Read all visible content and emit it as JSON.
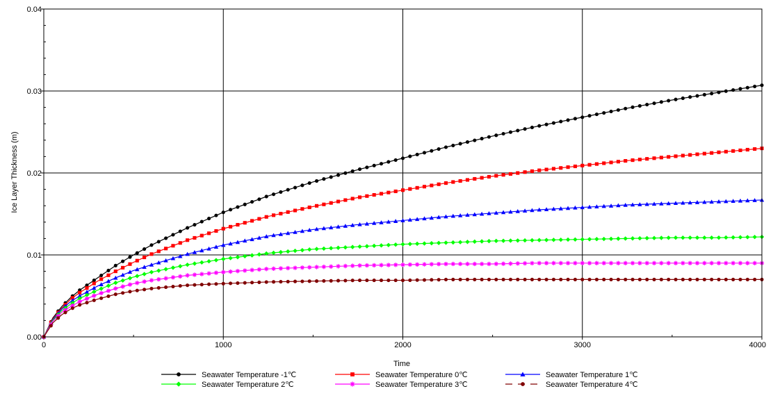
{
  "chart_data": {
    "type": "line",
    "xlabel": "Time",
    "ylabel": "Ice Layer Thickness (m)",
    "xlim": [
      0,
      4000
    ],
    "ylim": [
      0,
      0.04
    ],
    "x_ticks": [
      "0",
      "1000",
      "2000",
      "3000",
      "4000"
    ],
    "y_ticks": [
      "0.00",
      "0.01",
      "0.02",
      "0.03",
      "0.04"
    ],
    "grid": true,
    "legend_position": "bottom",
    "x": [
      0,
      50,
      100,
      150,
      200,
      300,
      400,
      500,
      600,
      800,
      1000,
      1250,
      1500,
      1750,
      2000,
      2250,
      2500,
      2750,
      3000,
      3250,
      3500,
      3750,
      4000
    ],
    "series": [
      {
        "name": "Seawater Temperature -1℃",
        "color": "#000000",
        "marker": "circle",
        "dash": false,
        "values": [
          0,
          0.0023,
          0.0037,
          0.0048,
          0.0057,
          0.0072,
          0.0087,
          0.01,
          0.0112,
          0.0133,
          0.0152,
          0.0172,
          0.0189,
          0.0204,
          0.0218,
          0.0232,
          0.0245,
          0.0257,
          0.0268,
          0.0279,
          0.0289,
          0.0298,
          0.0307
        ]
      },
      {
        "name": "Seawater Temperature 0℃",
        "color": "#ff0000",
        "marker": "square",
        "dash": false,
        "values": [
          0,
          0.0022,
          0.0035,
          0.0046,
          0.0054,
          0.0068,
          0.008,
          0.0091,
          0.0101,
          0.0118,
          0.0132,
          0.0147,
          0.0159,
          0.017,
          0.0179,
          0.0188,
          0.0196,
          0.0203,
          0.0209,
          0.0215,
          0.022,
          0.0225,
          0.023
        ]
      },
      {
        "name": "Seawater Temperature 1℃",
        "color": "#0000ff",
        "marker": "triangle",
        "dash": false,
        "values": [
          0,
          0.0021,
          0.0034,
          0.0043,
          0.005,
          0.0062,
          0.0072,
          0.0081,
          0.0088,
          0.0101,
          0.0112,
          0.0123,
          0.0131,
          0.0137,
          0.0142,
          0.0147,
          0.0151,
          0.0155,
          0.0158,
          0.0161,
          0.0163,
          0.0165,
          0.0167
        ]
      },
      {
        "name": "Seawater Temperature 2℃",
        "color": "#00ff00",
        "marker": "diamond",
        "dash": false,
        "values": [
          0,
          0.002,
          0.0032,
          0.004,
          0.0047,
          0.0057,
          0.0066,
          0.0073,
          0.0079,
          0.0088,
          0.0095,
          0.0102,
          0.0107,
          0.011,
          0.0113,
          0.0115,
          0.0117,
          0.0118,
          0.0119,
          0.012,
          0.0121,
          0.0121,
          0.0122
        ]
      },
      {
        "name": "Seawater Temperature 3℃",
        "color": "#ff00ff",
        "marker": "star",
        "dash": false,
        "values": [
          0,
          0.0019,
          0.003,
          0.0037,
          0.0043,
          0.0052,
          0.0059,
          0.0065,
          0.0069,
          0.0075,
          0.0079,
          0.0083,
          0.0085,
          0.0087,
          0.0088,
          0.0089,
          0.0089,
          0.009,
          0.009,
          0.009,
          0.009,
          0.009,
          0.009
        ]
      },
      {
        "name": "Seawater Temperature 4℃",
        "color": "#800000",
        "marker": "circle",
        "dash": true,
        "values": [
          0,
          0.0017,
          0.0027,
          0.0034,
          0.0039,
          0.0046,
          0.0052,
          0.0056,
          0.0059,
          0.0063,
          0.0065,
          0.0067,
          0.0068,
          0.0069,
          0.0069,
          0.007,
          0.007,
          0.007,
          0.007,
          0.007,
          0.007,
          0.007,
          0.007
        ]
      }
    ]
  }
}
